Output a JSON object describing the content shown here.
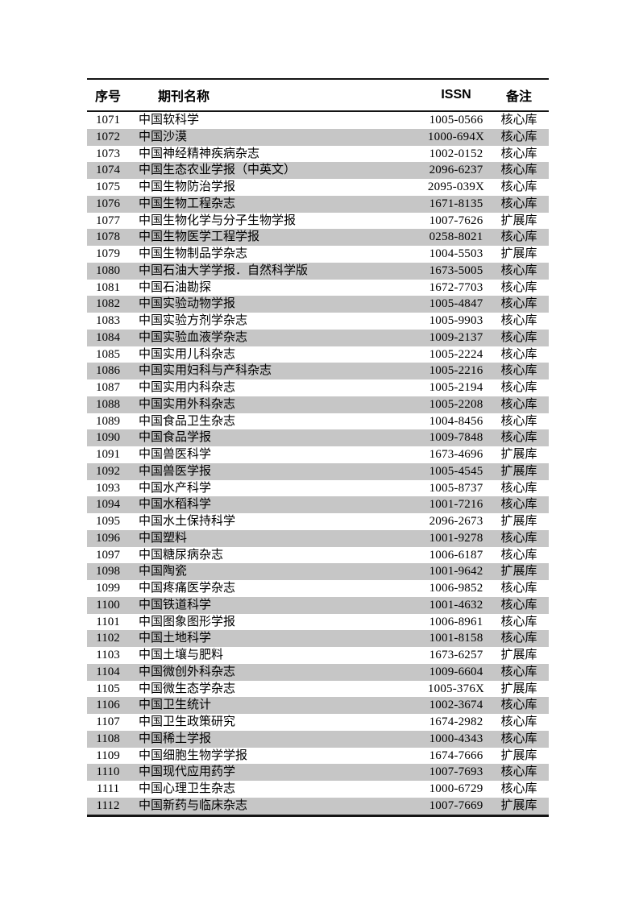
{
  "colors": {
    "stripe": "#c6c6c6",
    "rule": "#141414",
    "text": "#000000",
    "background": "#ffffff"
  },
  "table": {
    "headers": {
      "no": "序号",
      "name": "期刊名称",
      "issn": "ISSN",
      "note": "备注"
    },
    "rows": [
      {
        "no": "1071",
        "name": "中国软科学",
        "issn": "1005-0566",
        "note": "核心库"
      },
      {
        "no": "1072",
        "name": "中国沙漠",
        "issn": "1000-694X",
        "note": "核心库"
      },
      {
        "no": "1073",
        "name": "中国神经精神疾病杂志",
        "issn": "1002-0152",
        "note": "核心库"
      },
      {
        "no": "1074",
        "name": "中国生态农业学报（中英文）",
        "issn": "2096-6237",
        "note": "核心库"
      },
      {
        "no": "1075",
        "name": "中国生物防治学报",
        "issn": "2095-039X",
        "note": "核心库"
      },
      {
        "no": "1076",
        "name": "中国生物工程杂志",
        "issn": "1671-8135",
        "note": "核心库"
      },
      {
        "no": "1077",
        "name": "中国生物化学与分子生物学报",
        "issn": "1007-7626",
        "note": "扩展库"
      },
      {
        "no": "1078",
        "name": "中国生物医学工程学报",
        "issn": "0258-8021",
        "note": "核心库"
      },
      {
        "no": "1079",
        "name": "中国生物制品学杂志",
        "issn": "1004-5503",
        "note": "扩展库"
      },
      {
        "no": "1080",
        "name": "中国石油大学学报．自然科学版",
        "issn": "1673-5005",
        "note": "核心库"
      },
      {
        "no": "1081",
        "name": "中国石油勘探",
        "issn": "1672-7703",
        "note": "核心库"
      },
      {
        "no": "1082",
        "name": "中国实验动物学报",
        "issn": "1005-4847",
        "note": "核心库"
      },
      {
        "no": "1083",
        "name": "中国实验方剂学杂志",
        "issn": "1005-9903",
        "note": "核心库"
      },
      {
        "no": "1084",
        "name": "中国实验血液学杂志",
        "issn": "1009-2137",
        "note": "核心库"
      },
      {
        "no": "1085",
        "name": "中国实用儿科杂志",
        "issn": "1005-2224",
        "note": "核心库"
      },
      {
        "no": "1086",
        "name": "中国实用妇科与产科杂志",
        "issn": "1005-2216",
        "note": "核心库"
      },
      {
        "no": "1087",
        "name": "中国实用内科杂志",
        "issn": "1005-2194",
        "note": "核心库"
      },
      {
        "no": "1088",
        "name": "中国实用外科杂志",
        "issn": "1005-2208",
        "note": "核心库"
      },
      {
        "no": "1089",
        "name": "中国食品卫生杂志",
        "issn": "1004-8456",
        "note": "核心库"
      },
      {
        "no": "1090",
        "name": "中国食品学报",
        "issn": "1009-7848",
        "note": "核心库"
      },
      {
        "no": "1091",
        "name": "中国兽医科学",
        "issn": "1673-4696",
        "note": "扩展库"
      },
      {
        "no": "1092",
        "name": "中国兽医学报",
        "issn": "1005-4545",
        "note": "扩展库"
      },
      {
        "no": "1093",
        "name": "中国水产科学",
        "issn": "1005-8737",
        "note": "核心库"
      },
      {
        "no": "1094",
        "name": "中国水稻科学",
        "issn": "1001-7216",
        "note": "核心库"
      },
      {
        "no": "1095",
        "name": "中国水土保持科学",
        "issn": "2096-2673",
        "note": "扩展库"
      },
      {
        "no": "1096",
        "name": "中国塑料",
        "issn": "1001-9278",
        "note": "核心库"
      },
      {
        "no": "1097",
        "name": "中国糖尿病杂志",
        "issn": "1006-6187",
        "note": "核心库"
      },
      {
        "no": "1098",
        "name": "中国陶瓷",
        "issn": "1001-9642",
        "note": "扩展库"
      },
      {
        "no": "1099",
        "name": "中国疼痛医学杂志",
        "issn": "1006-9852",
        "note": "核心库"
      },
      {
        "no": "1100",
        "name": "中国铁道科学",
        "issn": "1001-4632",
        "note": "核心库"
      },
      {
        "no": "1101",
        "name": "中国图象图形学报",
        "issn": "1006-8961",
        "note": "核心库"
      },
      {
        "no": "1102",
        "name": "中国土地科学",
        "issn": "1001-8158",
        "note": "核心库"
      },
      {
        "no": "1103",
        "name": "中国土壤与肥料",
        "issn": "1673-6257",
        "note": "扩展库"
      },
      {
        "no": "1104",
        "name": "中国微创外科杂志",
        "issn": "1009-6604",
        "note": "核心库"
      },
      {
        "no": "1105",
        "name": "中国微生态学杂志",
        "issn": "1005-376X",
        "note": "扩展库"
      },
      {
        "no": "1106",
        "name": "中国卫生统计",
        "issn": "1002-3674",
        "note": "核心库"
      },
      {
        "no": "1107",
        "name": "中国卫生政策研究",
        "issn": "1674-2982",
        "note": "核心库"
      },
      {
        "no": "1108",
        "name": "中国稀土学报",
        "issn": "1000-4343",
        "note": "核心库"
      },
      {
        "no": "1109",
        "name": "中国细胞生物学学报",
        "issn": "1674-7666",
        "note": "扩展库"
      },
      {
        "no": "1110",
        "name": "中国现代应用药学",
        "issn": "1007-7693",
        "note": "核心库"
      },
      {
        "no": "1111",
        "name": "中国心理卫生杂志",
        "issn": "1000-6729",
        "note": "核心库"
      },
      {
        "no": "1112",
        "name": "中国新药与临床杂志",
        "issn": "1007-7669",
        "note": "扩展库"
      }
    ]
  }
}
